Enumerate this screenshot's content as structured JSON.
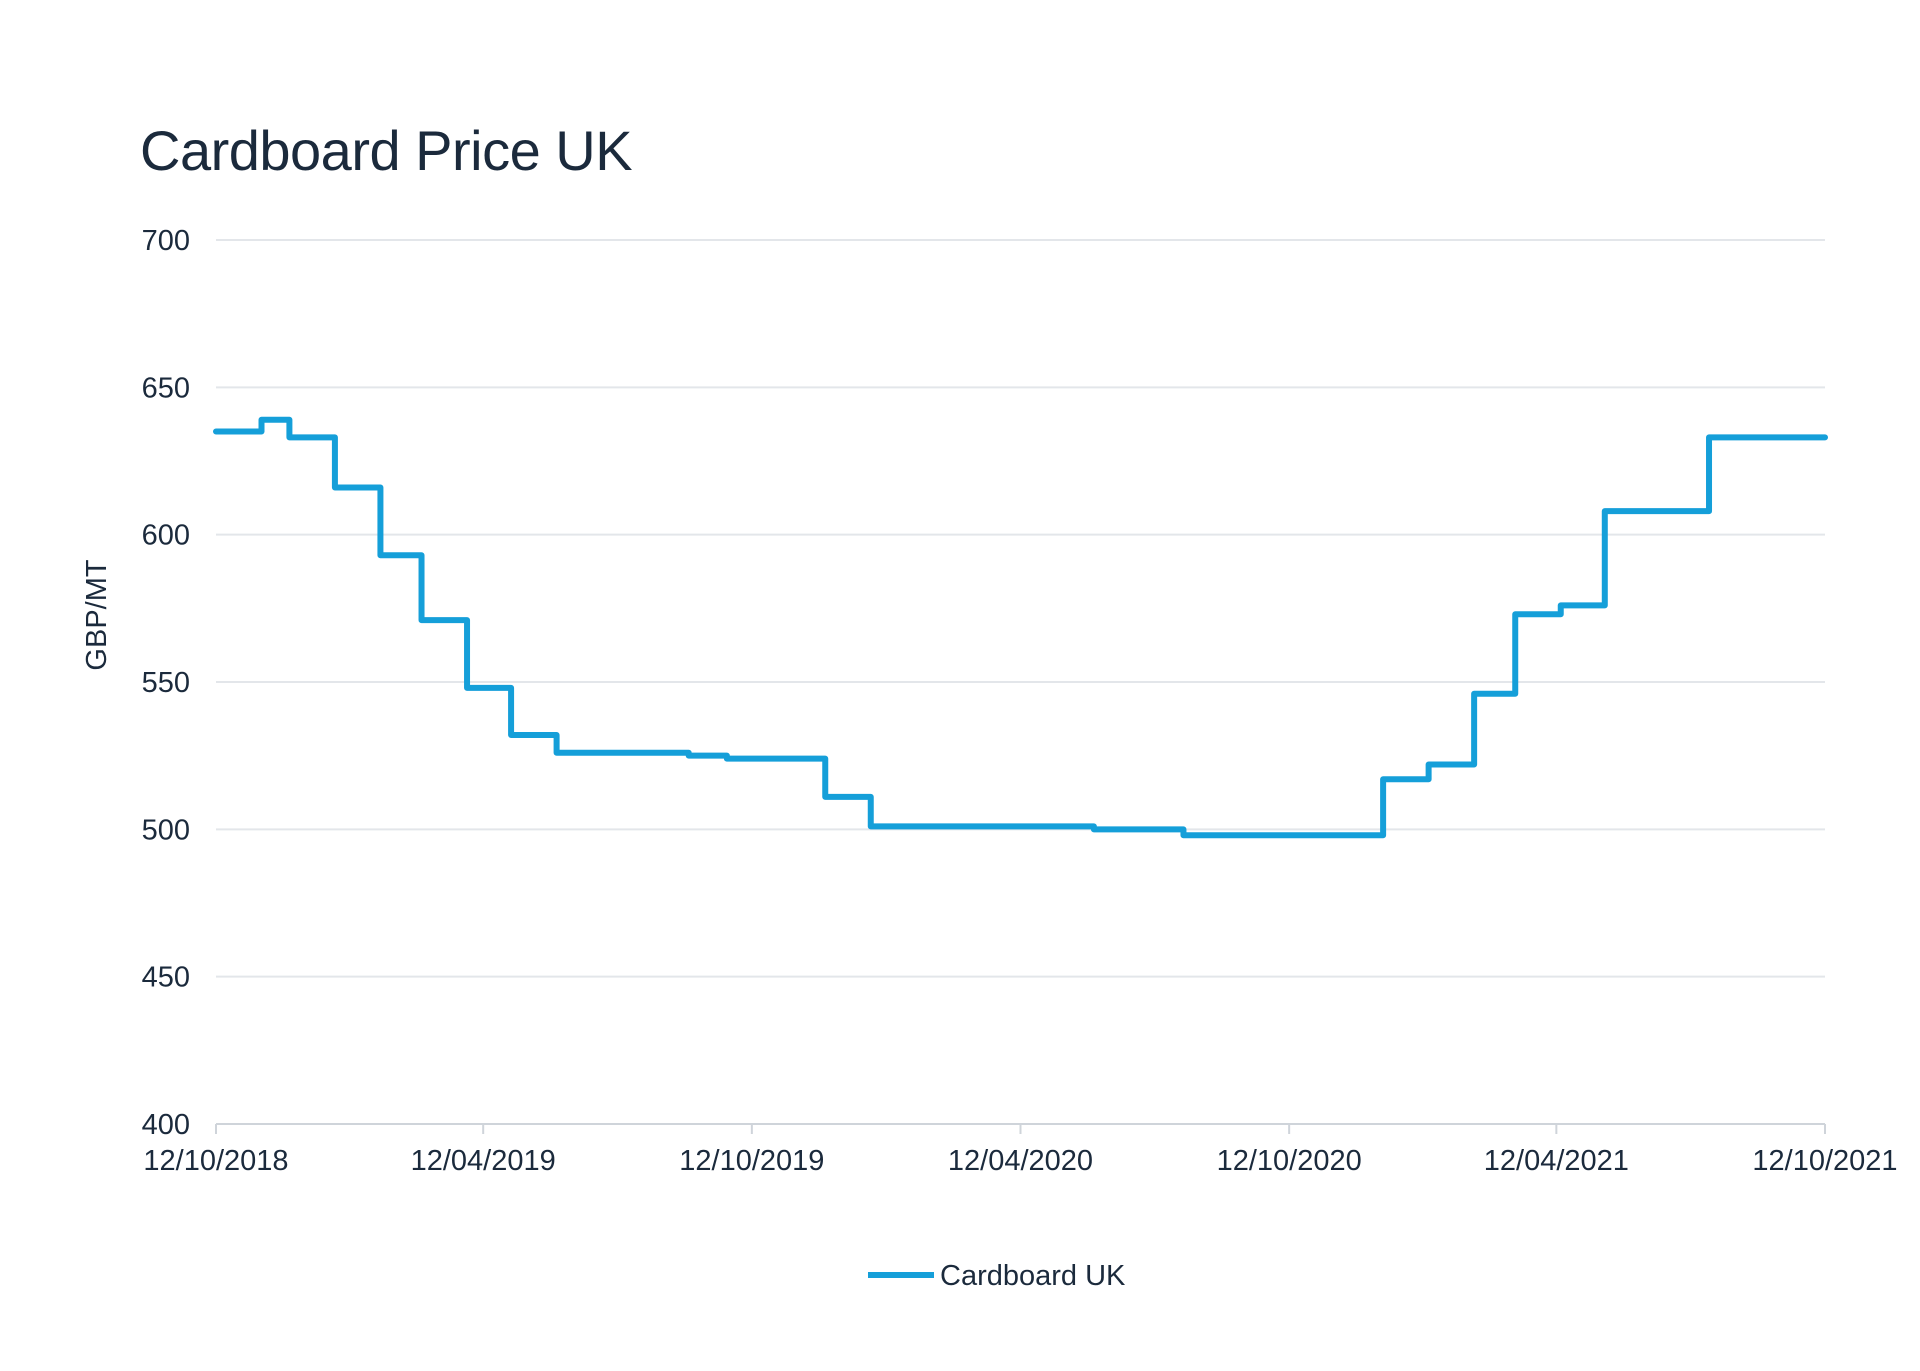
{
  "chart_data": {
    "type": "line",
    "title": "Cardboard Price UK",
    "ylabel": "GBP/MT",
    "xlabel": "",
    "ylim": [
      400,
      700
    ],
    "yticks": [
      400,
      450,
      500,
      550,
      600,
      650,
      700
    ],
    "xlim": [
      "2018-10-12",
      "2021-10-12"
    ],
    "xticks": [
      "12/10/2018",
      "12/04/2019",
      "12/10/2019",
      "12/04/2020",
      "12/10/2020",
      "12/04/2021",
      "12/10/2021"
    ],
    "grid": true,
    "legend": "bottom-center",
    "line_style": "step",
    "series": [
      {
        "name": "Cardboard UK",
        "color": "#159fd9",
        "points": [
          [
            "2018-10-12",
            635
          ],
          [
            "2018-11-12",
            639
          ],
          [
            "2018-12-01",
            633
          ],
          [
            "2019-01-01",
            616
          ],
          [
            "2019-02-01",
            593
          ],
          [
            "2019-03-01",
            571
          ],
          [
            "2019-04-01",
            548
          ],
          [
            "2019-05-01",
            532
          ],
          [
            "2019-06-01",
            526
          ],
          [
            "2019-08-01",
            526
          ],
          [
            "2019-08-30",
            525
          ],
          [
            "2019-09-25",
            524
          ],
          [
            "2019-12-01",
            511
          ],
          [
            "2020-01-01",
            501
          ],
          [
            "2020-06-01",
            500
          ],
          [
            "2020-08-01",
            498
          ],
          [
            "2020-12-15",
            517
          ],
          [
            "2021-01-15",
            522
          ],
          [
            "2021-02-15",
            546
          ],
          [
            "2021-03-15",
            573
          ],
          [
            "2021-04-15",
            576
          ],
          [
            "2021-05-15",
            608
          ],
          [
            "2021-07-25",
            633
          ],
          [
            "2021-10-12",
            633
          ]
        ]
      }
    ]
  }
}
